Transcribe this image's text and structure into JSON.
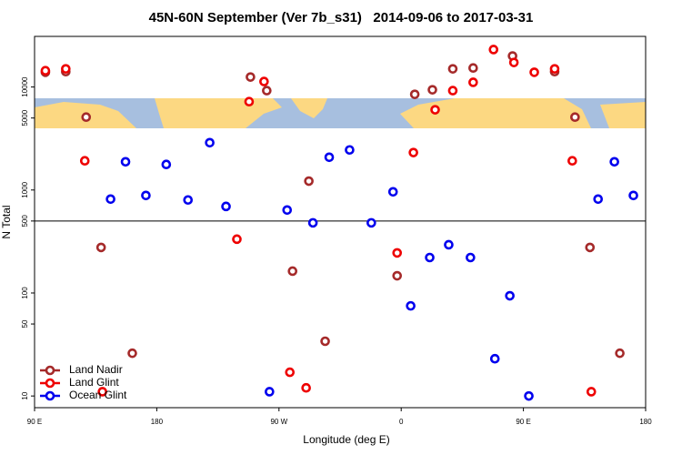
{
  "chart_data": {
    "type": "scatter",
    "title": "45N-60N September (Ver 7b_s31)   2014-09-06 to 2017-03-31",
    "x_label": "Longitude (deg E)",
    "y_label": "N Total",
    "xlim": [
      90,
      540
    ],
    "xticks": [
      {
        "value": 90,
        "label": "90 E"
      },
      180,
      {
        "value": 270,
        "label": "90 W"
      },
      {
        "value": 360,
        "label": "0"
      },
      {
        "value": 450,
        "label": "90 E"
      },
      {
        "value": 540,
        "label": "180"
      }
    ],
    "ylim": [
      7.7,
      31000
    ],
    "yticks": [
      10,
      50,
      100,
      500,
      1000,
      5000,
      10000
    ],
    "log_y": true,
    "hline": 500,
    "legend": "lower left",
    "series": [
      {
        "name": "Land Nadir",
        "color": "#a52a2a",
        "x": [
          98,
          113,
          128,
          139,
          162,
          249,
          261,
          280,
          292,
          304,
          357,
          370,
          383,
          398,
          413,
          442,
          473,
          488,
          499,
          521
        ],
        "values": [
          13900,
          14100,
          5100,
          277,
          26,
          12500,
          9220,
          163,
          1220,
          34,
          147,
          8490,
          9400,
          15000,
          15300,
          20000,
          14100,
          5100,
          277,
          26
        ]
      },
      {
        "name": "Land Glint",
        "color": "#ee0000",
        "x": [
          98,
          113,
          127,
          140,
          239,
          248,
          259,
          278,
          290,
          369,
          357,
          385,
          398,
          413,
          428,
          443,
          458,
          473,
          486,
          500
        ],
        "values": [
          14400,
          15000,
          1920,
          11,
          333,
          7210,
          11300,
          17,
          12,
          2310,
          245,
          6010,
          9220,
          11100,
          23100,
          17300,
          13900,
          15000,
          1920,
          11
        ]
      },
      {
        "name": "Ocean Glint",
        "color": "#0000ee",
        "x": [
          146,
          157,
          172,
          187,
          203,
          219,
          231,
          263,
          276,
          295,
          307,
          322,
          338,
          354,
          367,
          381,
          395,
          411,
          429,
          440,
          454,
          505,
          517,
          531
        ],
        "values": [
          816,
          1880,
          885,
          1770,
          800,
          2880,
          693,
          11,
          639,
          480,
          2080,
          2450,
          480,
          960,
          75,
          221,
          294,
          221,
          23,
          94,
          10,
          816,
          1880,
          885
        ]
      }
    ]
  }
}
